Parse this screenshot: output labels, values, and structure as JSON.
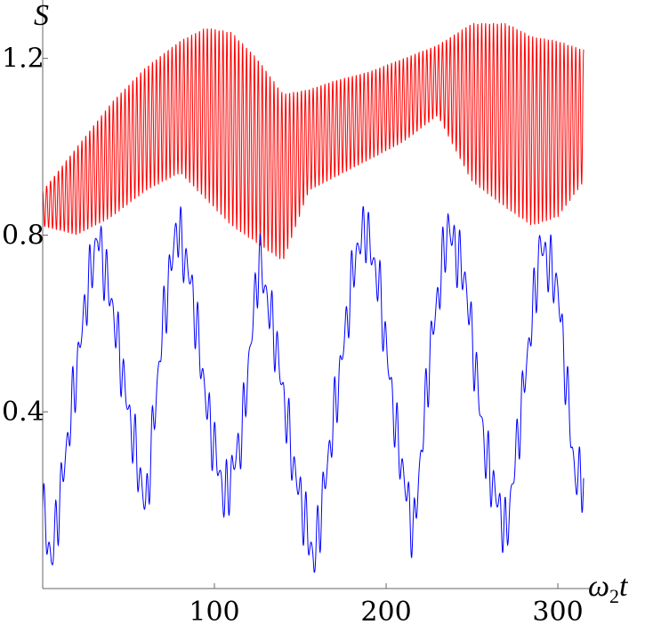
{
  "chart_data": {
    "type": "line",
    "title": "",
    "xlabel_parts": [
      "ω",
      "2",
      "t"
    ],
    "ylabel": "S",
    "xlim": [
      0,
      315
    ],
    "ylim": [
      0,
      1.32
    ],
    "x_ticks": [
      100,
      200,
      300
    ],
    "x_tick_labels": [
      "100",
      "200",
      "300"
    ],
    "y_ticks": [
      0.4,
      0.8,
      1.2
    ],
    "y_tick_labels": [
      "0.4",
      "0.8",
      "1.2"
    ],
    "grid": false,
    "legend": "none",
    "series": [
      {
        "color": "#ff0000",
        "description": "fast oscillation inside a slowly varying envelope",
        "x": [
          0,
          20,
          40,
          60,
          80,
          95,
          110,
          125,
          140,
          155,
          170,
          190,
          210,
          230,
          250,
          270,
          285,
          300,
          315
        ],
        "upper": [
          0.9,
          1.0,
          1.1,
          1.18,
          1.24,
          1.27,
          1.26,
          1.2,
          1.12,
          1.13,
          1.15,
          1.17,
          1.2,
          1.23,
          1.28,
          1.28,
          1.25,
          1.24,
          1.22
        ],
        "lower": [
          0.82,
          0.8,
          0.84,
          0.9,
          0.94,
          0.88,
          0.82,
          0.78,
          0.74,
          0.9,
          0.93,
          0.97,
          1.01,
          1.07,
          0.92,
          0.86,
          0.82,
          0.84,
          0.92
        ],
        "cycles": 138
      },
      {
        "color": "#0000ff",
        "description": "periodic arches with superposed fine oscillation",
        "x": [
          0,
          5,
          15,
          25,
          32,
          40,
          50,
          60,
          70,
          78,
          86,
          96,
          106,
          116,
          126,
          136,
          146,
          158,
          170,
          182,
          188,
          196,
          206,
          216,
          226,
          236,
          246,
          258,
          270,
          280,
          290,
          300,
          310,
          315
        ],
        "y": [
          0.18,
          0.06,
          0.35,
          0.65,
          0.8,
          0.65,
          0.4,
          0.18,
          0.6,
          0.82,
          0.7,
          0.4,
          0.2,
          0.35,
          0.75,
          0.55,
          0.28,
          0.06,
          0.4,
          0.75,
          0.82,
          0.68,
          0.35,
          0.12,
          0.55,
          0.82,
          0.7,
          0.3,
          0.12,
          0.45,
          0.78,
          0.68,
          0.25,
          0.25
        ],
        "ripple_amplitude": 0.08,
        "cycles": 95
      }
    ]
  }
}
